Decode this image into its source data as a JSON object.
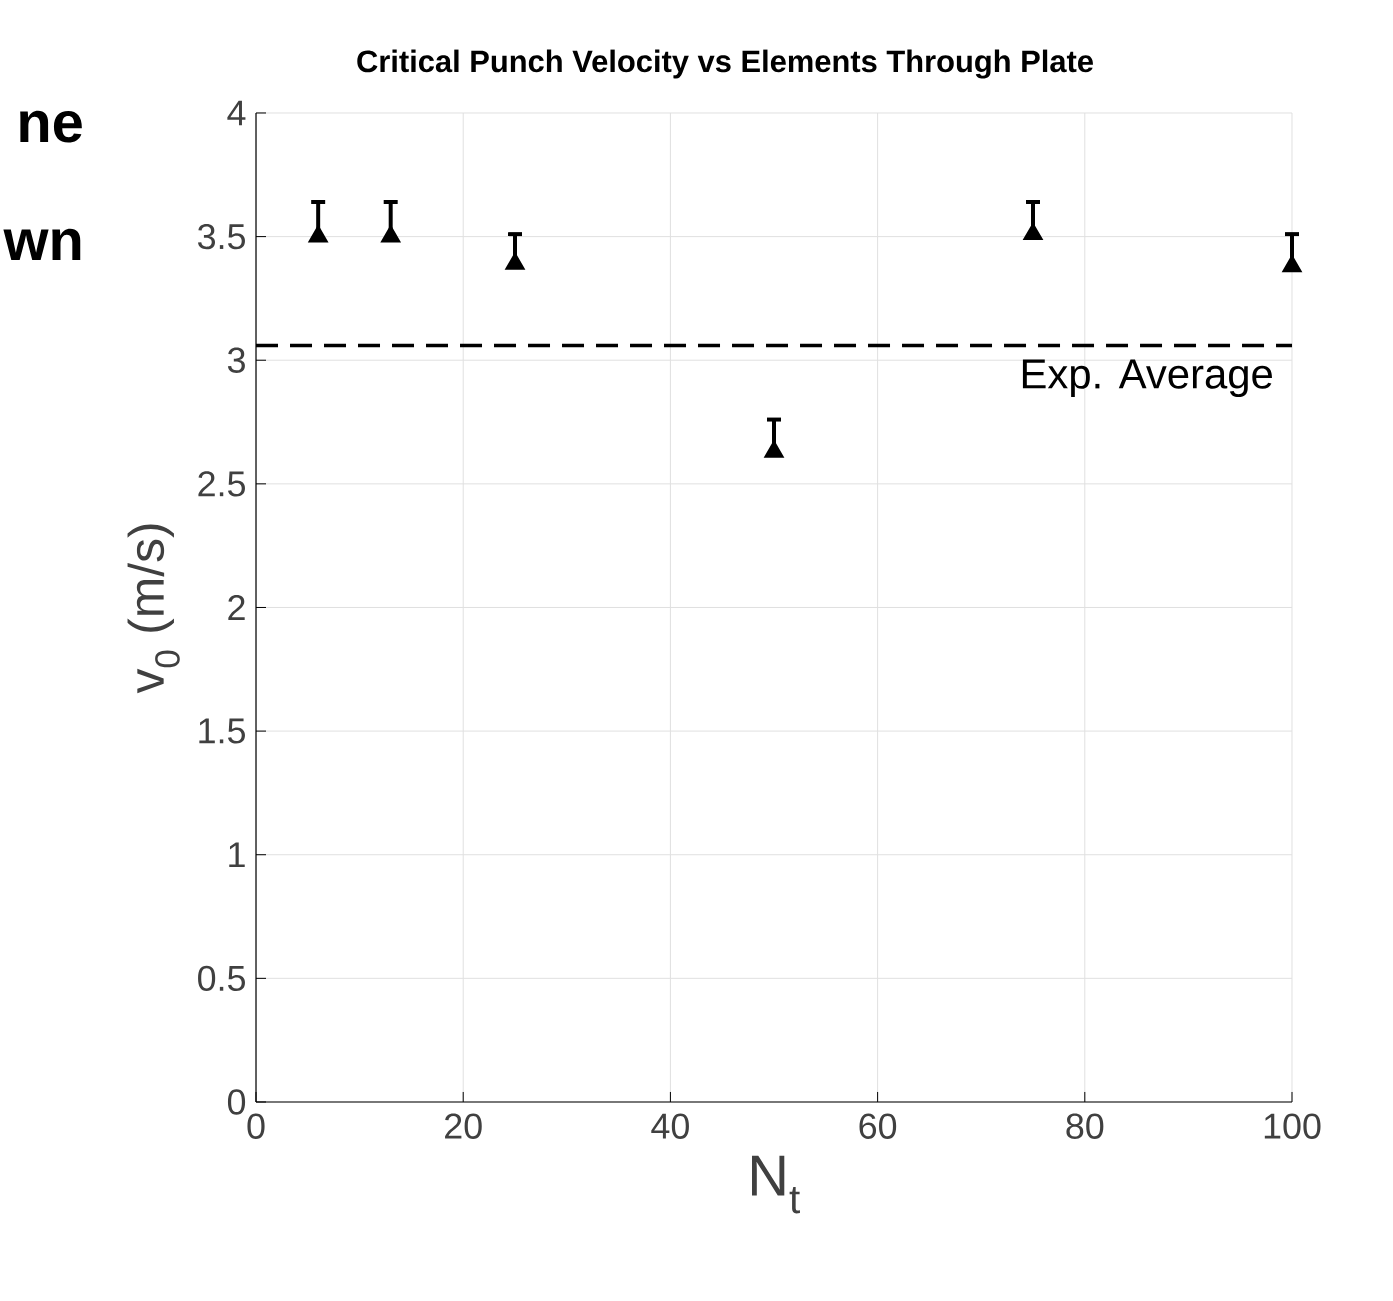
{
  "chart_data": {
    "type": "scatter",
    "title": "Critical Punch Velocity vs Elements Through Plate",
    "xlabel": "N$_{t}$",
    "ylabel": "v$_{0}$ (m/s)",
    "x": [
      6,
      13,
      25,
      50,
      75,
      100
    ],
    "values": [
      3.5,
      3.5,
      3.39,
      2.63,
      3.51,
      3.38
    ],
    "errors": [
      [
        3.5,
        3.64
      ],
      [
        3.5,
        3.64
      ],
      [
        3.39,
        3.51
      ],
      [
        2.63,
        2.76
      ],
      [
        3.51,
        3.64
      ],
      [
        3.38,
        3.51
      ]
    ],
    "color": "#000000",
    "marker": "triangle",
    "xlim": [
      0,
      100
    ],
    "xticks": [
      0,
      20,
      40,
      60,
      80,
      100
    ],
    "ylim": [
      0,
      4
    ],
    "yticks": [
      0,
      0.5,
      1,
      1.5,
      2,
      2.5,
      3,
      3.5,
      4
    ],
    "grid": true,
    "ref_lines": [
      {
        "axis": "y",
        "value": 3.06,
        "label": "Exp. Average",
        "line_style": "dashed",
        "color": "#000000"
      }
    ],
    "annotations": [
      "ne",
      "wn"
    ]
  }
}
